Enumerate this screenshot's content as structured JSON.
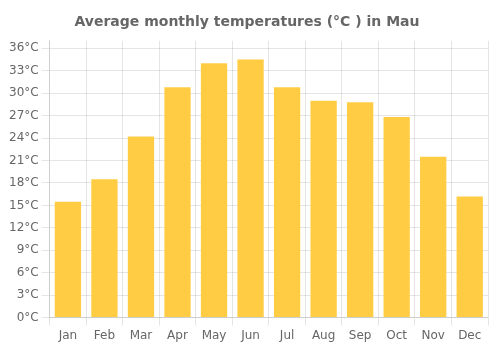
{
  "chart_data": {
    "type": "bar",
    "title": "Average monthly temperatures (°C ) in Mau",
    "categories": [
      "Jan",
      "Feb",
      "Mar",
      "Apr",
      "May",
      "Jun",
      "Jul",
      "Aug",
      "Sep",
      "Oct",
      "Nov",
      "Dec"
    ],
    "values": [
      15.5,
      18.5,
      24.2,
      30.8,
      34.0,
      34.5,
      30.8,
      29.0,
      28.8,
      26.8,
      21.5,
      16.2
    ],
    "color": "#FFCC44",
    "ylim": [
      0,
      37
    ],
    "yticks": [
      {
        "value": 0,
        "label": "0°C"
      },
      {
        "value": 3,
        "label": "3°C"
      },
      {
        "value": 6,
        "label": "6°C"
      },
      {
        "value": 9,
        "label": "9°C"
      },
      {
        "value": 12,
        "label": "12°C"
      },
      {
        "value": 15,
        "label": "15°C"
      },
      {
        "value": 18,
        "label": "18°C"
      },
      {
        "value": 21,
        "label": "21°C"
      },
      {
        "value": 24,
        "label": "24°C"
      },
      {
        "value": 27,
        "label": "27°C"
      },
      {
        "value": 30,
        "label": "30°C"
      },
      {
        "value": 33,
        "label": "33°C"
      },
      {
        "value": 36,
        "label": "36°C"
      }
    ],
    "grid": true
  }
}
